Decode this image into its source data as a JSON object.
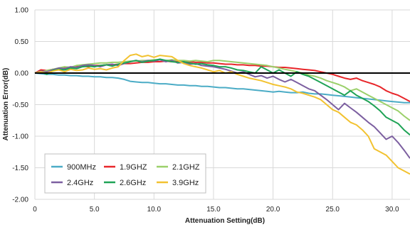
{
  "chart_data": {
    "type": "line",
    "xlabel": "Attenuation Setting(dB)",
    "ylabel": "Attenuation Error(dB)",
    "xlim": [
      0,
      31.5
    ],
    "ylim": [
      -2.0,
      1.0
    ],
    "xticks": [
      0,
      5,
      10,
      15,
      20,
      25,
      30
    ],
    "xtick_labels": [
      "0",
      "5.0",
      "10.0",
      "15.0",
      "20.0",
      "25.0",
      "30.0"
    ],
    "yticks": [
      1.0,
      0.5,
      0.0,
      -0.5,
      -1.0,
      -1.5,
      -2.0
    ],
    "ytick_labels": [
      "1.00",
      "0.50",
      "0.00",
      "-0.50",
      "-1.00",
      "-1.50",
      "-2.00"
    ],
    "grid": true,
    "reference_line": 0,
    "legend_position": "bottom-left",
    "series": [
      {
        "name": "900MHz",
        "color": "#4bacc6",
        "x": [
          0,
          0.5,
          1,
          1.5,
          2,
          2.5,
          3,
          3.5,
          4,
          4.5,
          5,
          5.5,
          6,
          6.5,
          7,
          7.5,
          8,
          8.5,
          9,
          9.5,
          10,
          10.5,
          11,
          11.5,
          12,
          12.5,
          13,
          13.5,
          14,
          14.5,
          15,
          15.5,
          16,
          16.5,
          17,
          17.5,
          18,
          18.5,
          19,
          19.5,
          20,
          20.5,
          21,
          21.5,
          22,
          22.5,
          23,
          23.5,
          24,
          24.5,
          25,
          25.5,
          26,
          26.5,
          27,
          27.5,
          28,
          28.5,
          29,
          29.5,
          30,
          30.5,
          31,
          31.5
        ],
        "y": [
          0.0,
          -0.01,
          -0.02,
          -0.02,
          -0.03,
          -0.03,
          -0.04,
          -0.04,
          -0.05,
          -0.05,
          -0.06,
          -0.06,
          -0.07,
          -0.07,
          -0.08,
          -0.1,
          -0.13,
          -0.14,
          -0.15,
          -0.15,
          -0.16,
          -0.17,
          -0.17,
          -0.18,
          -0.19,
          -0.19,
          -0.2,
          -0.2,
          -0.21,
          -0.21,
          -0.22,
          -0.23,
          -0.23,
          -0.24,
          -0.25,
          -0.25,
          -0.26,
          -0.27,
          -0.28,
          -0.29,
          -0.3,
          -0.29,
          -0.3,
          -0.31,
          -0.31,
          -0.3,
          -0.32,
          -0.33,
          -0.33,
          -0.34,
          -0.35,
          -0.36,
          -0.37,
          -0.38,
          -0.39,
          -0.4,
          -0.41,
          -0.42,
          -0.43,
          -0.44,
          -0.45,
          -0.46,
          -0.47,
          -0.47
        ]
      },
      {
        "name": "1.9GHZ",
        "color": "#e8262a",
        "x": [
          0,
          0.5,
          1,
          1.5,
          2,
          2.5,
          3,
          3.5,
          4,
          4.5,
          5,
          5.5,
          6,
          6.5,
          7,
          7.5,
          8,
          8.5,
          9,
          9.5,
          10,
          10.5,
          11,
          11.5,
          12,
          12.5,
          13,
          13.5,
          14,
          14.5,
          15,
          15.5,
          16,
          16.5,
          17,
          17.5,
          18,
          18.5,
          19,
          19.5,
          20,
          20.5,
          21,
          21.5,
          22,
          22.5,
          23,
          23.5,
          24,
          24.5,
          25,
          25.5,
          26,
          26.5,
          27,
          27.5,
          28,
          28.5,
          29,
          29.5,
          30,
          30.5,
          31,
          31.5
        ],
        "y": [
          0.0,
          0.05,
          0.04,
          0.06,
          0.07,
          0.08,
          0.09,
          0.1,
          0.11,
          0.1,
          0.12,
          0.12,
          0.13,
          0.13,
          0.14,
          0.15,
          0.15,
          0.16,
          0.17,
          0.17,
          0.18,
          0.18,
          0.19,
          0.18,
          0.19,
          0.18,
          0.18,
          0.17,
          0.17,
          0.16,
          0.16,
          0.15,
          0.14,
          0.14,
          0.13,
          0.13,
          0.12,
          0.12,
          0.11,
          0.11,
          0.1,
          0.09,
          0.09,
          0.08,
          0.07,
          0.06,
          0.05,
          0.04,
          0.02,
          0.0,
          -0.02,
          -0.05,
          -0.08,
          -0.1,
          -0.08,
          -0.12,
          -0.15,
          -0.18,
          -0.22,
          -0.28,
          -0.32,
          -0.35,
          -0.4,
          -0.45
        ]
      },
      {
        "name": "2.1GHZ",
        "color": "#9bd06a",
        "x": [
          0,
          0.5,
          1,
          1.5,
          2,
          2.5,
          3,
          3.5,
          4,
          4.5,
          5,
          5.5,
          6,
          6.5,
          7,
          7.5,
          8,
          8.5,
          9,
          9.5,
          10,
          10.5,
          11,
          11.5,
          12,
          12.5,
          13,
          13.5,
          14,
          14.5,
          15,
          15.5,
          16,
          16.5,
          17,
          17.5,
          18,
          18.5,
          19,
          19.5,
          20,
          20.5,
          21,
          21.5,
          22,
          22.5,
          23,
          23.5,
          24,
          24.5,
          25,
          25.5,
          26,
          26.5,
          27,
          27.5,
          28,
          28.5,
          29,
          29.5,
          30,
          30.5,
          31,
          31.5
        ],
        "y": [
          0.0,
          0.02,
          0.04,
          0.06,
          0.08,
          0.1,
          0.09,
          0.12,
          0.13,
          0.14,
          0.15,
          0.16,
          0.16,
          0.17,
          0.17,
          0.18,
          0.19,
          0.19,
          0.2,
          0.2,
          0.21,
          0.21,
          0.2,
          0.21,
          0.2,
          0.2,
          0.19,
          0.2,
          0.19,
          0.18,
          0.2,
          0.2,
          0.19,
          0.18,
          0.17,
          0.16,
          0.15,
          0.14,
          0.13,
          0.12,
          0.1,
          0.08,
          0.06,
          0.04,
          0.02,
          0.0,
          -0.03,
          -0.05,
          -0.08,
          -0.12,
          -0.15,
          -0.18,
          -0.22,
          -0.28,
          -0.25,
          -0.3,
          -0.35,
          -0.4,
          -0.45,
          -0.5,
          -0.55,
          -0.6,
          -0.68,
          -0.75
        ]
      },
      {
        "name": "2.4GHz",
        "color": "#7c5fa0",
        "x": [
          0,
          0.5,
          1,
          1.5,
          2,
          2.5,
          3,
          3.5,
          4,
          4.5,
          5,
          5.5,
          6,
          6.5,
          7,
          7.5,
          8,
          8.5,
          9,
          9.5,
          10,
          10.5,
          11,
          11.5,
          12,
          12.5,
          13,
          13.5,
          14,
          14.5,
          15,
          15.5,
          16,
          16.5,
          17,
          17.5,
          18,
          18.5,
          19,
          19.5,
          20,
          20.5,
          21,
          21.5,
          22,
          22.5,
          23,
          23.5,
          24,
          24.5,
          25,
          25.5,
          26,
          26.5,
          27,
          27.5,
          28,
          28.5,
          29,
          29.5,
          30,
          30.5,
          31,
          31.5
        ],
        "y": [
          0.0,
          0.03,
          0.02,
          0.05,
          0.08,
          0.07,
          0.1,
          0.09,
          0.12,
          0.13,
          0.12,
          0.1,
          0.13,
          0.14,
          0.12,
          0.15,
          0.18,
          0.2,
          0.18,
          0.2,
          0.19,
          0.21,
          0.18,
          0.2,
          0.16,
          0.17,
          0.14,
          0.15,
          0.12,
          0.11,
          0.1,
          0.08,
          0.06,
          0.03,
          0.0,
          0.02,
          -0.02,
          -0.06,
          -0.04,
          -0.08,
          -0.05,
          -0.1,
          -0.14,
          -0.1,
          -0.15,
          -0.2,
          -0.25,
          -0.28,
          -0.35,
          -0.42,
          -0.5,
          -0.58,
          -0.48,
          -0.55,
          -0.62,
          -0.7,
          -0.78,
          -0.85,
          -0.95,
          -1.05,
          -1.0,
          -1.1,
          -1.22,
          -1.35
        ]
      },
      {
        "name": "2.6GHz",
        "color": "#1fa356",
        "x": [
          0,
          0.5,
          1,
          1.5,
          2,
          2.5,
          3,
          3.5,
          4,
          4.5,
          5,
          5.5,
          6,
          6.5,
          7,
          7.5,
          8,
          8.5,
          9,
          9.5,
          10,
          10.5,
          11,
          11.5,
          12,
          12.5,
          13,
          13.5,
          14,
          14.5,
          15,
          15.5,
          16,
          16.5,
          17,
          17.5,
          18,
          18.5,
          19,
          19.5,
          20,
          20.5,
          21,
          21.5,
          22,
          22.5,
          23,
          23.5,
          24,
          24.5,
          25,
          25.5,
          26,
          26.5,
          27,
          27.5,
          28,
          28.5,
          29,
          29.5,
          30,
          30.5,
          31,
          31.5
        ],
        "y": [
          0.0,
          0.02,
          -0.02,
          0.04,
          0.06,
          0.05,
          0.08,
          0.07,
          0.1,
          0.11,
          0.1,
          0.12,
          0.13,
          0.11,
          0.14,
          0.16,
          0.18,
          0.2,
          0.17,
          0.19,
          0.2,
          0.22,
          0.2,
          0.18,
          0.17,
          0.18,
          0.16,
          0.14,
          0.15,
          0.13,
          0.12,
          0.1,
          0.1,
          0.08,
          0.05,
          0.04,
          0.02,
          0.0,
          0.1,
          0.05,
          0.0,
          0.05,
          0.0,
          -0.05,
          0.02,
          -0.02,
          -0.05,
          -0.1,
          -0.15,
          -0.2,
          -0.25,
          -0.3,
          -0.35,
          -0.28,
          -0.35,
          -0.4,
          -0.45,
          -0.52,
          -0.6,
          -0.7,
          -0.75,
          -0.8,
          -0.9,
          -0.98
        ]
      },
      {
        "name": "3.9GHz",
        "color": "#f2c230",
        "x": [
          0,
          0.5,
          1,
          1.5,
          2,
          2.5,
          3,
          3.5,
          4,
          4.5,
          5,
          5.5,
          6,
          6.5,
          7,
          7.5,
          8,
          8.5,
          9,
          9.5,
          10,
          10.5,
          11,
          11.5,
          12,
          12.5,
          13,
          13.5,
          14,
          14.5,
          15,
          15.5,
          16,
          16.5,
          17,
          17.5,
          18,
          18.5,
          19,
          19.5,
          20,
          20.5,
          21,
          21.5,
          22,
          22.5,
          23,
          23.5,
          24,
          24.5,
          25,
          25.5,
          26,
          26.5,
          27,
          27.5,
          28,
          28.5,
          29,
          29.5,
          30,
          30.5,
          31,
          31.5
        ],
        "y": [
          0.0,
          0.02,
          0.0,
          0.03,
          0.05,
          0.02,
          0.06,
          0.04,
          0.05,
          0.08,
          0.06,
          0.07,
          0.05,
          0.08,
          0.1,
          0.2,
          0.28,
          0.3,
          0.26,
          0.28,
          0.25,
          0.28,
          0.27,
          0.26,
          0.2,
          0.15,
          0.12,
          0.1,
          0.08,
          0.05,
          0.02,
          0.04,
          0.0,
          0.02,
          -0.02,
          -0.05,
          -0.08,
          -0.1,
          -0.12,
          -0.15,
          -0.18,
          -0.2,
          -0.22,
          -0.25,
          -0.3,
          -0.32,
          -0.35,
          -0.38,
          -0.42,
          -0.5,
          -0.58,
          -0.62,
          -0.7,
          -0.78,
          -0.82,
          -0.9,
          -1.0,
          -1.2,
          -1.25,
          -1.3,
          -1.4,
          -1.5,
          -1.55,
          -1.6
        ]
      }
    ]
  }
}
